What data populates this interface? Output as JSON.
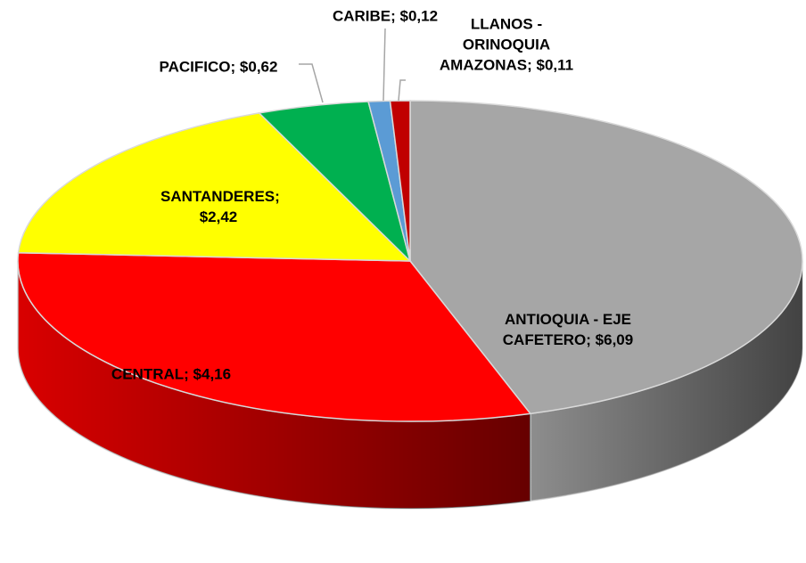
{
  "chart_data": {
    "type": "pie",
    "categories": [
      "ANTIOQUIA - EJE CAFETERO",
      "CENTRAL",
      "SANTANDERES",
      "PACIFICO",
      "CARIBE",
      "LLANOS - ORINOQUIA AMAZONAS"
    ],
    "values": [
      6.09,
      4.16,
      2.42,
      0.62,
      0.12,
      0.11
    ],
    "value_labels": [
      "$6,09",
      "$4,16",
      "$2,42",
      "$0,62",
      "$0,12",
      "$0,11"
    ],
    "label_separator": "; ",
    "colors": [
      "#a6a6a6",
      "#ff0000",
      "#ffff00",
      "#00b050",
      "#5b9bd5",
      "#c00000"
    ]
  }
}
